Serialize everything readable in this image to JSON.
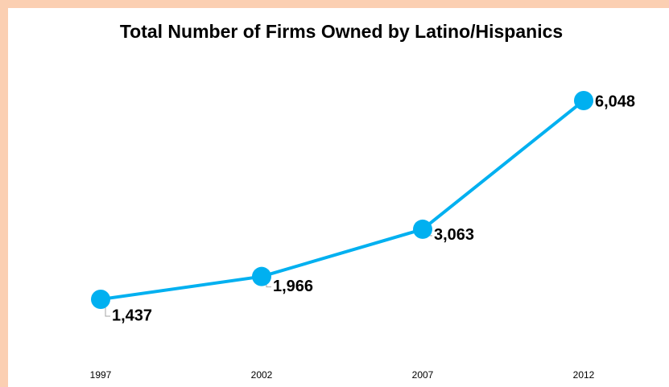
{
  "chart_data": {
    "type": "line",
    "title": "Total Number of Firms Owned by Latino/Hispanics",
    "categories": [
      "1997",
      "2002",
      "2007",
      "2012"
    ],
    "values": [
      1437,
      1966,
      3063,
      6048
    ],
    "value_labels": [
      "1,437",
      "1,966",
      "3,063",
      "6,048"
    ],
    "color": "#00b0f0"
  }
}
